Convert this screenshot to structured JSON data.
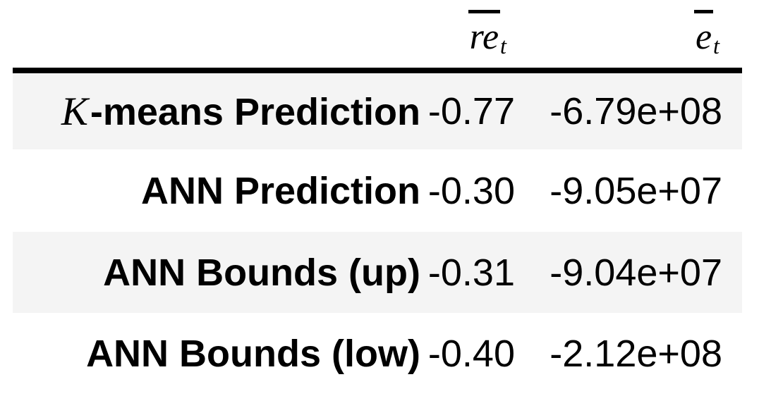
{
  "table": {
    "header": {
      "col1": {
        "base": "re",
        "sub": "t"
      },
      "col2": {
        "base": "e",
        "sub": "t"
      }
    },
    "rows": [
      {
        "label_prefix_math": "K",
        "label": "-means Prediction",
        "re_t": "-0.77",
        "e_t": "-6.79e+08"
      },
      {
        "label_prefix_math": "",
        "label": "ANN Prediction",
        "re_t": "-0.30",
        "e_t": "-9.05e+07"
      },
      {
        "label_prefix_math": "",
        "label": "ANN Bounds (up)",
        "re_t": "-0.31",
        "e_t": "-9.04e+07"
      },
      {
        "label_prefix_math": "",
        "label": "ANN Bounds (low)",
        "re_t": "-0.40",
        "e_t": "-2.12e+08"
      }
    ],
    "colors": {
      "stripe": "#f4f4f4",
      "rule": "#000000",
      "text": "#000000",
      "background": "#ffffff"
    }
  },
  "chart_data": {
    "type": "table",
    "columns": [
      "",
      "overline(re)_t",
      "overline(e)_t"
    ],
    "rows": [
      [
        "K-means Prediction",
        "-0.77",
        "-6.79e+08"
      ],
      [
        "ANN Prediction",
        "-0.30",
        "-9.05e+07"
      ],
      [
        "ANN Bounds (up)",
        "-0.31",
        "-9.04e+07"
      ],
      [
        "ANN Bounds (low)",
        "-0.40",
        "-2.12e+08"
      ]
    ]
  }
}
